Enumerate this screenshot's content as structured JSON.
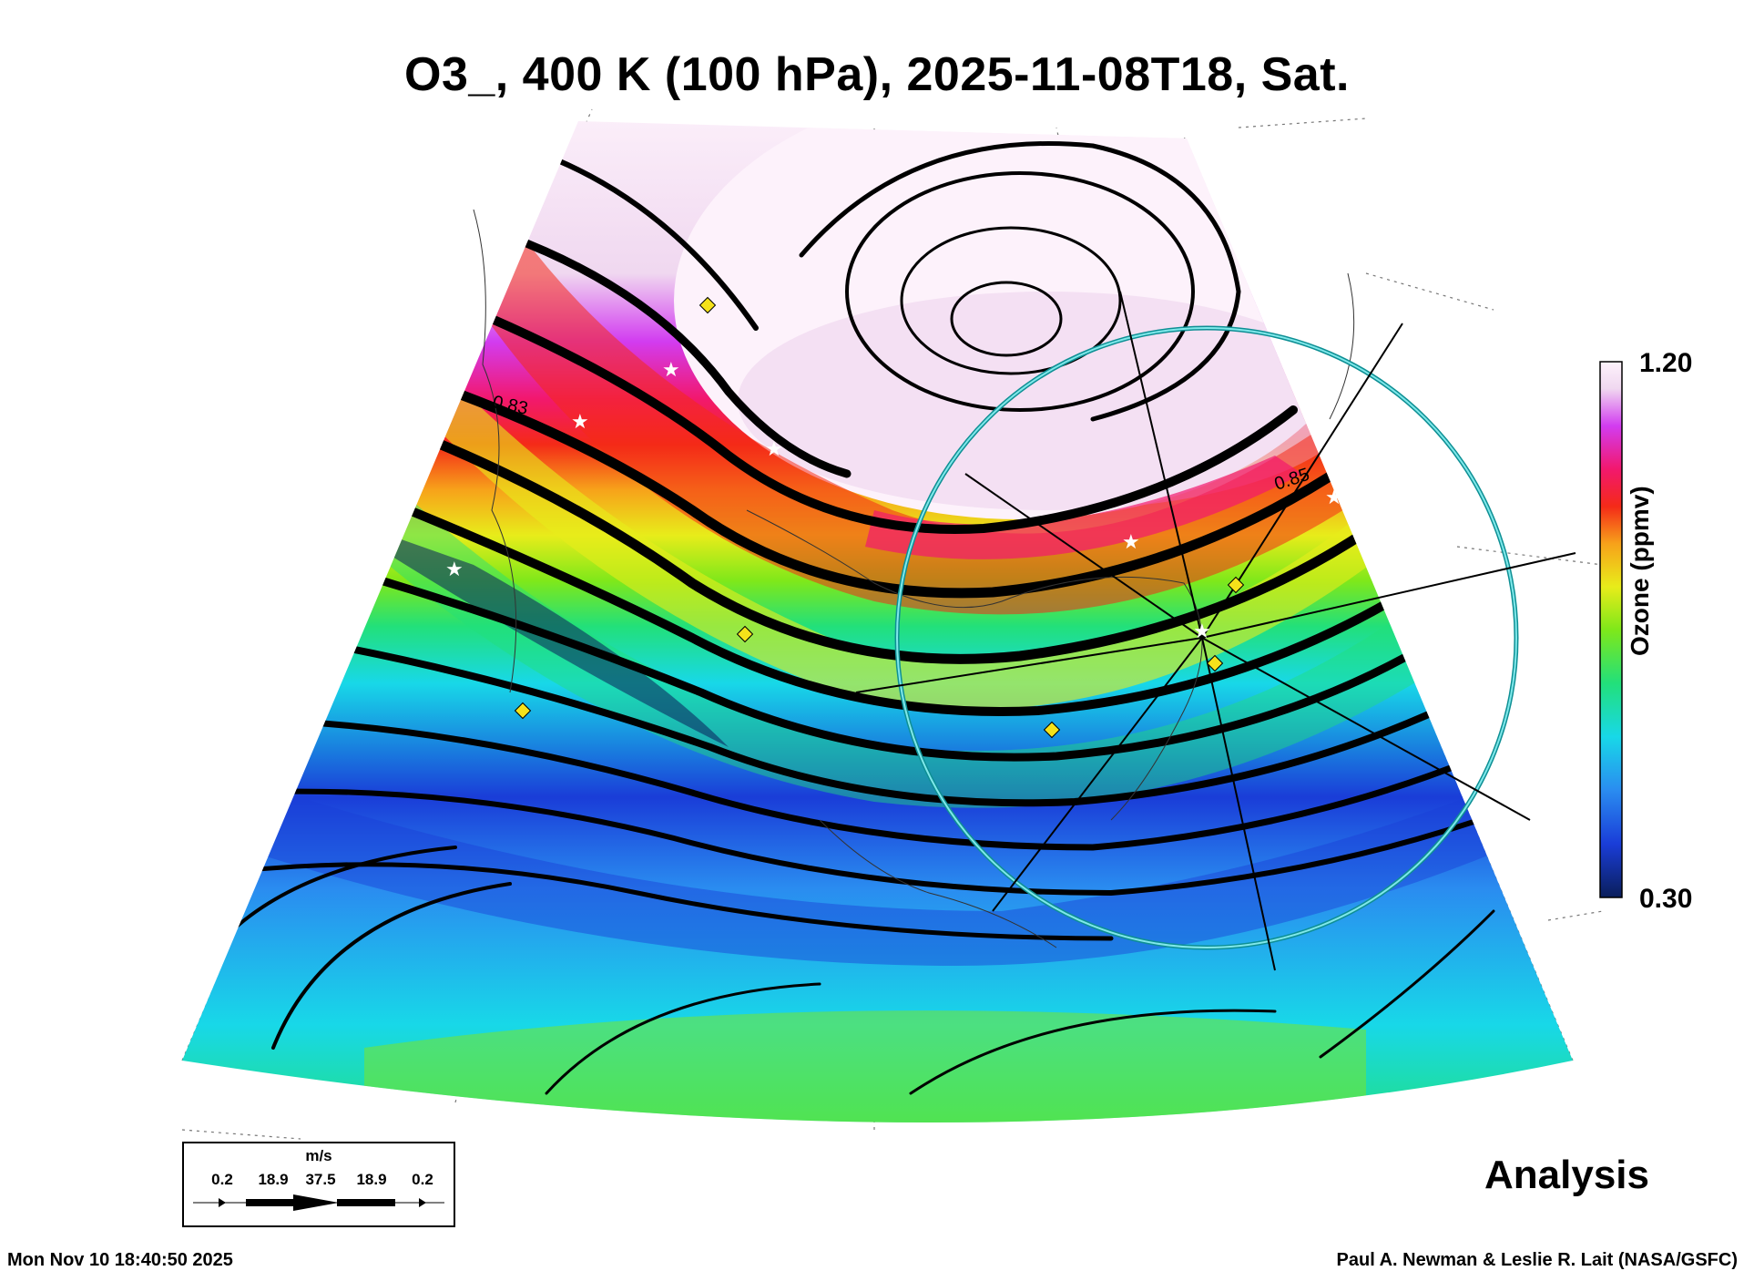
{
  "title": "O3_, 400 K (100 hPa), 2025-11-08T18, Sat.",
  "colorbar": {
    "max_label": "1.20",
    "min_label": "0.30",
    "title": "Ozone (ppmv)",
    "colors": [
      "#0a1e5a",
      "#1a3dd8",
      "#2a8cf0",
      "#18d8e8",
      "#22e07a",
      "#7fe81a",
      "#e8ec1a",
      "#f7a21a",
      "#f42a18",
      "#f2186e",
      "#d23cf0",
      "#b48ef4",
      "#f0d8f0",
      "#fdf2fb"
    ]
  },
  "contour_labels": [
    "0.83",
    "0.85"
  ],
  "wind_legend": {
    "unit": "m/s",
    "values": [
      "0.2",
      "18.9",
      "37.5",
      "18.9",
      "0.2"
    ]
  },
  "analysis_label": "Analysis",
  "timestamp": "Mon Nov 10 18:40:50 2025",
  "credit": "Paul A. Newman & Leslie R. Lait (NASA/GSFC)"
}
